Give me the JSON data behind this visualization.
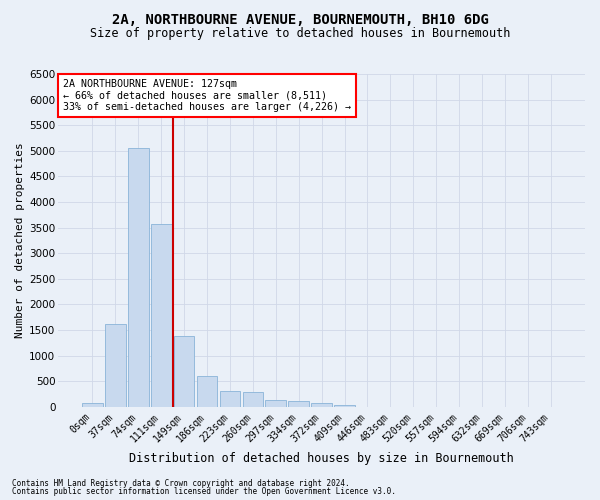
{
  "title": "2A, NORTHBOURNE AVENUE, BOURNEMOUTH, BH10 6DG",
  "subtitle": "Size of property relative to detached houses in Bournemouth",
  "xlabel": "Distribution of detached houses by size in Bournemouth",
  "ylabel": "Number of detached properties",
  "footnote1": "Contains HM Land Registry data © Crown copyright and database right 2024.",
  "footnote2": "Contains public sector information licensed under the Open Government Licence v3.0.",
  "bar_labels": [
    "0sqm",
    "37sqm",
    "74sqm",
    "111sqm",
    "149sqm",
    "186sqm",
    "223sqm",
    "260sqm",
    "297sqm",
    "334sqm",
    "372sqm",
    "409sqm",
    "446sqm",
    "483sqm",
    "520sqm",
    "557sqm",
    "594sqm",
    "632sqm",
    "669sqm",
    "706sqm",
    "743sqm"
  ],
  "bar_values": [
    70,
    1620,
    5060,
    3580,
    1390,
    610,
    300,
    295,
    140,
    110,
    75,
    40,
    5,
    0,
    0,
    0,
    0,
    0,
    0,
    0,
    0
  ],
  "bar_color": "#c8d9ee",
  "bar_edge_color": "#8ab4d8",
  "vline_color": "#cc0000",
  "vline_x_index": 3,
  "ylim": [
    0,
    6500
  ],
  "yticks": [
    0,
    500,
    1000,
    1500,
    2000,
    2500,
    3000,
    3500,
    4000,
    4500,
    5000,
    5500,
    6000,
    6500
  ],
  "annotation_title": "2A NORTHBOURNE AVENUE: 127sqm",
  "annotation_line1": "← 66% of detached houses are smaller (8,511)",
  "annotation_line2": "33% of semi-detached houses are larger (4,226) →",
  "grid_color": "#d0d8e8",
  "bg_color": "#eaf0f8",
  "title_fontsize": 10,
  "subtitle_fontsize": 8.5,
  "ylabel_fontsize": 8,
  "xlabel_fontsize": 8.5
}
